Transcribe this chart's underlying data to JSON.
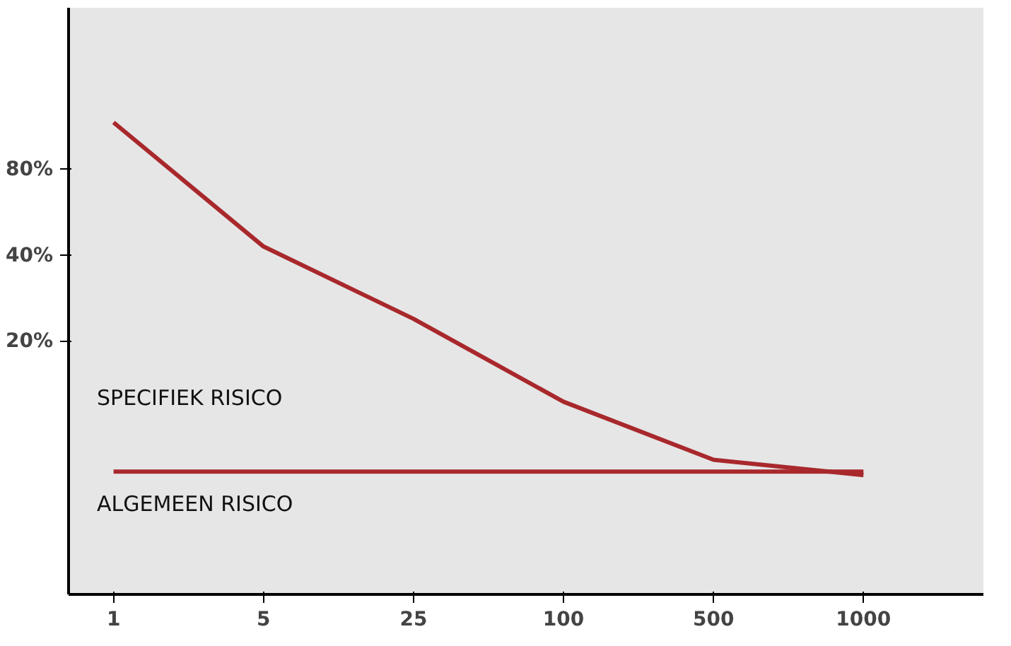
{
  "chart_data": {
    "type": "line",
    "categories": [
      "1",
      "5",
      "25",
      "100",
      "500",
      "1000"
    ],
    "series": [
      {
        "color": "#a8282c",
        "values": [
          117,
          43,
          24,
          12.3,
          7.7,
          6.8
        ]
      },
      {
        "color": "#a8282c",
        "values": [
          7,
          7,
          7,
          7,
          7,
          7
        ]
      }
    ],
    "log": "y",
    "ylim": [
      2.6,
      295
    ],
    "yticks": [
      {
        "value": 20,
        "label": "20%"
      },
      {
        "value": 40,
        "label": "40%"
      },
      {
        "value": 80,
        "label": "80%"
      }
    ],
    "annotations": [
      "SPECIFIEK RISICO",
      "ALGEMEEN RISICO"
    ],
    "marker": "none",
    "line_style": "solid"
  }
}
